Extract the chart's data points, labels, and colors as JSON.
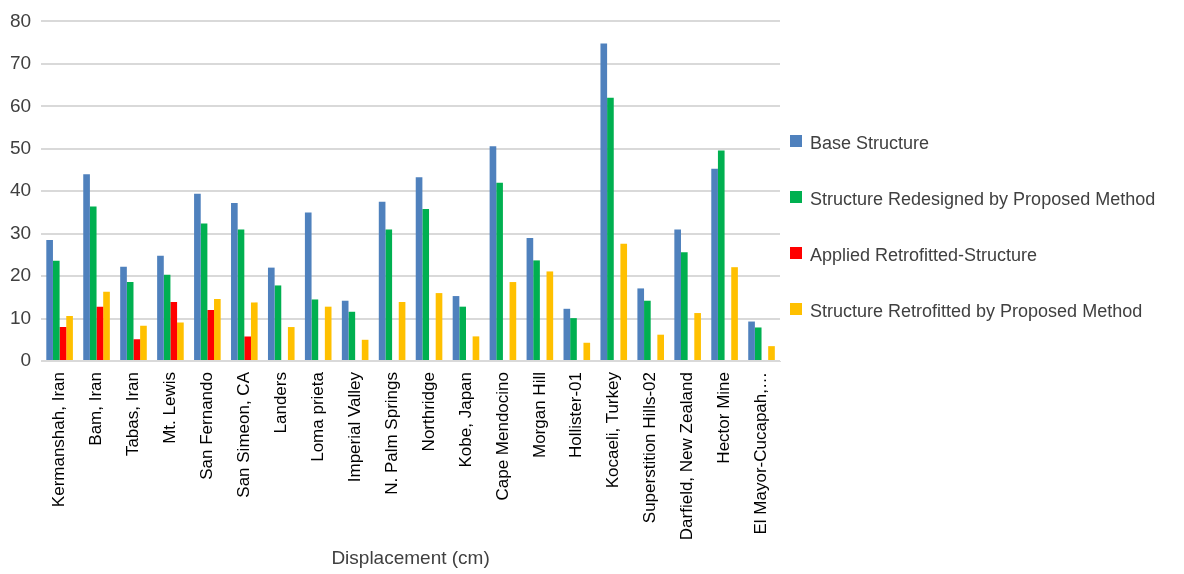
{
  "chart_data": {
    "type": "bar",
    "xlabel": "Displacement (cm)",
    "categories": [
      "Kermanshah, Iran",
      "Bam, Iran",
      "Tabas, Iran",
      "Mt. Lewis",
      "San Fernando",
      "San Simeon, CA",
      "Landers",
      "Loma prieta",
      "Imperial Valley",
      "N. Palm Springs",
      "Northridge",
      "Kobe, Japan",
      "Cape Mendocino",
      "Morgan Hill",
      "Hollister-01",
      "Kocaeli, Turkey",
      "Superstition Hills-02",
      "Darfield, New Zealand",
      "Hector Mine",
      "El Mayor-Cucapah,…"
    ],
    "series": [
      {
        "name": "Base Structure",
        "color": "#4f81bd",
        "values": [
          28.5,
          44,
          22.2,
          24.8,
          39.4,
          37.2,
          22,
          35,
          14.2,
          37.5,
          43.3,
          15.3,
          50.6,
          29,
          12.3,
          74.8,
          17.1,
          31,
          45.3,
          9.3
        ]
      },
      {
        "name": "Structure Redesigned by Proposed Method",
        "color": "#00b050",
        "values": [
          23.6,
          36.4,
          18.6,
          20.3,
          32.4,
          31,
          17.8,
          14.5,
          11.6,
          31,
          35.8,
          12.8,
          42,
          23.7,
          10.1,
          62,
          14.2,
          25.6,
          49.6,
          7.9
        ]
      },
      {
        "name": "Applied Retrofitted-Structure",
        "color": "#ff0000",
        "values": [
          8,
          12.8,
          5.1,
          13.9,
          12,
          5.8,
          null,
          null,
          null,
          null,
          null,
          null,
          null,
          null,
          null,
          null,
          null,
          null,
          null,
          null
        ]
      },
      {
        "name": "Structure Retrofitted by Proposed Method",
        "color": "#ffc000",
        "values": [
          10.6,
          16.3,
          8.3,
          9.1,
          14.6,
          13.8,
          8,
          12.8,
          5,
          13.9,
          16,
          5.8,
          18.6,
          21.1,
          4.3,
          27.6,
          6.2,
          11.3,
          22.1,
          3.5
        ]
      }
    ],
    "ylim": [
      0,
      80
    ],
    "yticks": [
      0,
      10,
      20,
      30,
      40,
      50,
      60,
      70,
      80
    ],
    "grid": "y",
    "legend": "right"
  }
}
